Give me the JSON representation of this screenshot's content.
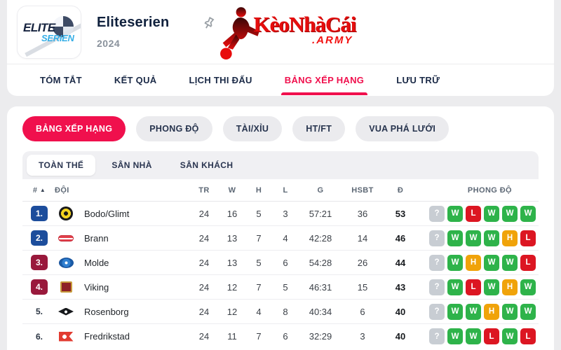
{
  "header": {
    "league_logo": {
      "top": "ELITE",
      "bottom": "SERIEN"
    },
    "title": "Eliteserien",
    "season": "2024",
    "brand": {
      "name": "KèoNhàCái",
      "suffix": ".ARMY"
    }
  },
  "nav": {
    "tabs": [
      {
        "label": "TÓM TẮT",
        "active": false
      },
      {
        "label": "KẾT QUẢ",
        "active": false
      },
      {
        "label": "LỊCH THI ĐẤU",
        "active": false
      },
      {
        "label": "BẢNG XẾP HẠNG",
        "active": true
      },
      {
        "label": "LƯU TRỮ",
        "active": false
      }
    ]
  },
  "subnav": {
    "pills": [
      {
        "label": "BẢNG XẾP HẠNG",
        "active": true
      },
      {
        "label": "PHONG ĐỘ",
        "active": false
      },
      {
        "label": "TÀI/XỈU",
        "active": false
      },
      {
        "label": "HT/FT",
        "active": false
      },
      {
        "label": "VUA PHÁ LƯỚI",
        "active": false
      }
    ]
  },
  "scope_tabs": [
    {
      "label": "TOÀN THỂ",
      "active": true
    },
    {
      "label": "SÂN NHÀ",
      "active": false
    },
    {
      "label": "SÂN KHÁCH",
      "active": false
    }
  ],
  "table": {
    "columns": {
      "rank": "#",
      "sort_indicator": "▲",
      "team": "ĐỘI",
      "tr": "TR",
      "w": "W",
      "h": "H",
      "l": "L",
      "g": "G",
      "hsbt": "HSBT",
      "d": "Đ",
      "form": "PHONG ĐỘ"
    },
    "rows": [
      {
        "rank": "1.",
        "rank_color": "blue",
        "logo": "bodo",
        "team": "Bodo/Glimt",
        "tr": "24",
        "w": "16",
        "h": "5",
        "l": "3",
        "g": "57:21",
        "hsbt": "36",
        "d": "53",
        "form": [
          "?",
          "W",
          "L",
          "W",
          "W",
          "W"
        ]
      },
      {
        "rank": "2.",
        "rank_color": "blue",
        "logo": "brann",
        "team": "Brann",
        "tr": "24",
        "w": "13",
        "h": "7",
        "l": "4",
        "g": "42:28",
        "hsbt": "14",
        "d": "46",
        "form": [
          "?",
          "W",
          "W",
          "W",
          "H",
          "L"
        ]
      },
      {
        "rank": "3.",
        "rank_color": "maroon",
        "logo": "molde",
        "team": "Molde",
        "tr": "24",
        "w": "13",
        "h": "5",
        "l": "6",
        "g": "54:28",
        "hsbt": "26",
        "d": "44",
        "form": [
          "?",
          "W",
          "H",
          "W",
          "W",
          "L"
        ]
      },
      {
        "rank": "4.",
        "rank_color": "maroon",
        "logo": "viking",
        "team": "Viking",
        "tr": "24",
        "w": "12",
        "h": "7",
        "l": "5",
        "g": "46:31",
        "hsbt": "15",
        "d": "43",
        "form": [
          "?",
          "W",
          "L",
          "W",
          "H",
          "W"
        ]
      },
      {
        "rank": "5.",
        "rank_color": "none",
        "logo": "rosenborg",
        "team": "Rosenborg",
        "tr": "24",
        "w": "12",
        "h": "4",
        "l": "8",
        "g": "40:34",
        "hsbt": "6",
        "d": "40",
        "form": [
          "?",
          "W",
          "W",
          "H",
          "W",
          "W"
        ]
      },
      {
        "rank": "6.",
        "rank_color": "none",
        "logo": "fredrikstad",
        "team": "Fredrikstad",
        "tr": "24",
        "w": "11",
        "h": "7",
        "l": "6",
        "g": "32:29",
        "hsbt": "3",
        "d": "40",
        "form": [
          "?",
          "W",
          "W",
          "L",
          "W",
          "L"
        ]
      }
    ]
  },
  "colors": {
    "accent": "#f0104d",
    "rank": {
      "blue": "#1c4d9c",
      "maroon": "#99193c",
      "none": ""
    },
    "form": {
      "W": "#2eb34a",
      "L": "#dc1622",
      "H": "#f0a30a",
      "?": "#c8cdd3"
    }
  }
}
